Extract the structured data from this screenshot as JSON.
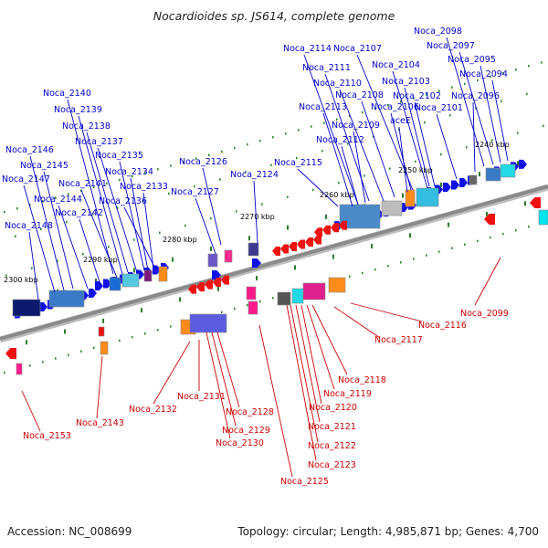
{
  "title": "Nocardioides sp. JS614, complete genome",
  "footer": {
    "accession": "Accession: NC_008699",
    "topology": "Topology: circular; Length: 4,985,871 bp; Genes: 4,700"
  },
  "colors": {
    "top_label": "#0000cc",
    "bottom_label": "#cc0000",
    "backbone": "#8a8a8a",
    "tick": "#2a8a2a"
  },
  "scale_labels": [
    "2240 kbp",
    "2250 kbp",
    "2260 kbp",
    "2270 kbp",
    "2280 kbp",
    "2290 kbp",
    "2300 kbp"
  ],
  "top_labels": [
    "Noca_2098",
    "Noca_2097",
    "Noca_2095",
    "Noca_2094",
    "Noca_2096",
    "Noca_2101",
    "Noca_2102",
    "Noca_2103",
    "Noca_2104",
    "Noca_2107",
    "Noca_2106",
    "aceE",
    "Noca_2108",
    "Noca_2110",
    "Noca_2111",
    "Noca_2114",
    "Noca_2113",
    "Noca_2109",
    "Noca_2112",
    "Noca_2115",
    "Noca_2124",
    "Noca_2126",
    "Noca_2127",
    "Noca_2140",
    "Noca_2139",
    "Noca_2138",
    "Noca_2137",
    "Noca_2135",
    "Noca_2134",
    "Noca_2133",
    "Noca_2141",
    "Noca_2136",
    "Noca_2146",
    "Noca_2145",
    "Noca_2147",
    "Noca_2144",
    "Noca_2142",
    "Noca_2148"
  ],
  "bottom_labels": [
    "Noca_2099",
    "Noca_2116",
    "Noca_2117",
    "Noca_2118",
    "Noca_2119",
    "Noca_2120",
    "Noca_2121",
    "Noca_2122",
    "Noca_2123",
    "Noca_2125",
    "Noca_2128",
    "Noca_2129",
    "Noca_2130",
    "Noca_2131",
    "Noca_2132",
    "Noca_2143",
    "Noca_2153"
  ]
}
